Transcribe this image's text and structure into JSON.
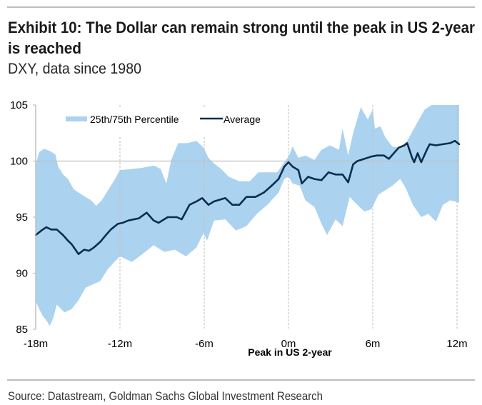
{
  "header": {
    "title_lines": [
      "Exhibit 10: The Dollar can remain strong until the peak in US 2-year",
      "is reached"
    ],
    "subtitle": "DXY, data since 1980"
  },
  "footer": {
    "source": "Source: Datastream, Goldman Sachs Global Investment Research"
  },
  "colors": {
    "band": "#abd3f0",
    "average_line": "#0b2d4f",
    "gridline": "#bfbfbf",
    "rule": "#a6a6a6"
  },
  "chart_data": {
    "type": "area",
    "title": "Exhibit 10: The Dollar can remain strong until the peak in US 2-year is reached",
    "subtitle": "DXY, data since 1980",
    "xlabel": "Peak in US 2-year",
    "ylabel": "",
    "xlim": [
      -18,
      12.15
    ],
    "ylim": [
      85,
      105
    ],
    "x_ticks": [
      -18,
      -12,
      -6,
      0,
      6,
      12
    ],
    "x_tick_labels": [
      "-18m",
      "-12m",
      "-6m",
      "0m",
      "6m",
      "12m"
    ],
    "y_ticks": [
      85,
      90,
      95,
      100,
      105
    ],
    "y_tick_labels": [
      "85",
      "90",
      "95",
      "100",
      "105"
    ],
    "grid": false,
    "reference_lines": {
      "horizontal": [
        100
      ],
      "vertical_dashed": [
        -12,
        -6,
        0,
        6,
        12
      ]
    },
    "legend": {
      "position": "top-left",
      "entries": [
        {
          "name": "25th/75th Percentile",
          "kind": "band"
        },
        {
          "name": "Average",
          "kind": "line"
        }
      ]
    },
    "series": [
      {
        "name": "25th/75th Percentile",
        "type": "band",
        "upper": [
          [
            -18.0,
            99.7
          ],
          [
            -17.75,
            100.8
          ],
          [
            -17.4,
            101.1
          ],
          [
            -17.0,
            100.9
          ],
          [
            -16.6,
            100.6
          ],
          [
            -16.4,
            99.5
          ],
          [
            -16.05,
            98.8
          ],
          [
            -15.7,
            98.4
          ],
          [
            -15.3,
            97.5
          ],
          [
            -14.95,
            97.2
          ],
          [
            -14.45,
            96.8
          ],
          [
            -14.05,
            96.5
          ],
          [
            -13.7,
            96.0
          ],
          [
            -13.3,
            96.5
          ],
          [
            -12.9,
            97.3
          ],
          [
            -12.4,
            98.3
          ],
          [
            -12.0,
            99.2
          ],
          [
            -11.15,
            99.3
          ],
          [
            -10.4,
            99.4
          ],
          [
            -9.6,
            99.6
          ],
          [
            -9.1,
            99.3
          ],
          [
            -8.7,
            98.0
          ],
          [
            -8.35,
            100.1
          ],
          [
            -7.85,
            101.6
          ],
          [
            -7.2,
            101.6
          ],
          [
            -6.55,
            101.8
          ],
          [
            -6.05,
            101.2
          ],
          [
            -5.7,
            100.3
          ],
          [
            -5.4,
            99.9
          ],
          [
            -4.8,
            99.3
          ],
          [
            -4.25,
            98.6
          ],
          [
            -3.5,
            98.2
          ],
          [
            -2.75,
            98.2
          ],
          [
            -2.15,
            99.0
          ],
          [
            -1.5,
            99.0
          ],
          [
            -0.8,
            99.0
          ],
          [
            -0.3,
            99.9
          ],
          [
            0.0,
            100.4
          ],
          [
            0.3,
            101.3
          ],
          [
            0.7,
            100.3
          ],
          [
            1.2,
            100.5
          ],
          [
            1.85,
            100.1
          ],
          [
            2.35,
            101.0
          ],
          [
            2.95,
            101.4
          ],
          [
            3.6,
            101.0
          ],
          [
            3.85,
            102.9
          ],
          [
            4.25,
            100.5
          ],
          [
            4.6,
            102.5
          ],
          [
            5.15,
            104.8
          ],
          [
            5.65,
            103.7
          ],
          [
            6.0,
            104.6
          ],
          [
            6.15,
            102.9
          ],
          [
            6.55,
            103.1
          ],
          [
            6.9,
            102.1
          ],
          [
            7.4,
            101.3
          ],
          [
            7.95,
            101.2
          ],
          [
            8.45,
            101.8
          ],
          [
            8.85,
            102.7
          ],
          [
            9.2,
            103.5
          ],
          [
            9.7,
            104.6
          ],
          [
            10.2,
            105.0
          ],
          [
            12.15,
            105.0
          ]
        ],
        "lower": [
          [
            -18.0,
            87.5
          ],
          [
            -17.75,
            86.8
          ],
          [
            -17.5,
            86.2
          ],
          [
            -17.25,
            85.8
          ],
          [
            -17.0,
            85.3
          ],
          [
            -16.75,
            86.0
          ],
          [
            -16.5,
            87.2
          ],
          [
            -15.95,
            86.5
          ],
          [
            -15.45,
            86.8
          ],
          [
            -14.95,
            87.6
          ],
          [
            -14.45,
            88.7
          ],
          [
            -13.95,
            89.0
          ],
          [
            -13.4,
            89.3
          ],
          [
            -12.9,
            90.3
          ],
          [
            -12.4,
            91.0
          ],
          [
            -12.0,
            91.5
          ],
          [
            -11.15,
            91.0
          ],
          [
            -10.4,
            91.7
          ],
          [
            -9.6,
            92.5
          ],
          [
            -8.85,
            91.9
          ],
          [
            -8.1,
            92.1
          ],
          [
            -7.3,
            91.5
          ],
          [
            -6.55,
            92.3
          ],
          [
            -6.05,
            93.6
          ],
          [
            -5.8,
            92.9
          ],
          [
            -5.3,
            94.7
          ],
          [
            -4.5,
            94.8
          ],
          [
            -3.75,
            93.8
          ],
          [
            -3.0,
            94.2
          ],
          [
            -2.25,
            95.3
          ],
          [
            -1.5,
            96.1
          ],
          [
            -0.7,
            97.2
          ],
          [
            -0.3,
            98.4
          ],
          [
            0.0,
            98.6
          ],
          [
            0.3,
            98.0
          ],
          [
            0.8,
            97.8
          ],
          [
            1.2,
            96.5
          ],
          [
            1.85,
            95.9
          ],
          [
            2.35,
            94.4
          ],
          [
            2.75,
            93.4
          ],
          [
            3.35,
            94.8
          ],
          [
            3.85,
            94.2
          ],
          [
            4.35,
            96.8
          ],
          [
            4.9,
            96.1
          ],
          [
            5.4,
            95.5
          ],
          [
            5.9,
            95.7
          ],
          [
            6.4,
            97.0
          ],
          [
            6.9,
            97.4
          ],
          [
            7.4,
            97.8
          ],
          [
            7.95,
            98.4
          ],
          [
            8.35,
            97.6
          ],
          [
            8.85,
            96.1
          ],
          [
            9.45,
            95.0
          ],
          [
            9.95,
            95.3
          ],
          [
            10.5,
            94.6
          ],
          [
            11.0,
            96.1
          ],
          [
            11.5,
            96.5
          ],
          [
            12.15,
            96.3
          ]
        ]
      },
      {
        "name": "Average",
        "type": "line",
        "points": [
          [
            -18.0,
            93.4
          ],
          [
            -17.6,
            93.8
          ],
          [
            -17.25,
            94.1
          ],
          [
            -16.9,
            93.9
          ],
          [
            -16.5,
            93.9
          ],
          [
            -16.05,
            93.4
          ],
          [
            -15.7,
            92.9
          ],
          [
            -15.45,
            92.6
          ],
          [
            -14.95,
            91.7
          ],
          [
            -14.55,
            92.1
          ],
          [
            -14.2,
            92.0
          ],
          [
            -13.85,
            92.3
          ],
          [
            -13.4,
            92.8
          ],
          [
            -13.0,
            93.4
          ],
          [
            -12.65,
            93.9
          ],
          [
            -12.15,
            94.4
          ],
          [
            -11.8,
            94.5
          ],
          [
            -11.4,
            94.7
          ],
          [
            -10.65,
            94.9
          ],
          [
            -10.1,
            95.4
          ],
          [
            -9.6,
            94.7
          ],
          [
            -9.25,
            94.5
          ],
          [
            -8.6,
            95.0
          ],
          [
            -7.95,
            95.0
          ],
          [
            -7.6,
            94.8
          ],
          [
            -7.05,
            96.1
          ],
          [
            -6.55,
            96.4
          ],
          [
            -6.15,
            96.7
          ],
          [
            -5.7,
            96.1
          ],
          [
            -5.3,
            96.4
          ],
          [
            -4.5,
            96.7
          ],
          [
            -4.0,
            96.1
          ],
          [
            -3.5,
            96.1
          ],
          [
            -3.0,
            96.8
          ],
          [
            -2.35,
            96.8
          ],
          [
            -1.75,
            97.2
          ],
          [
            -1.2,
            97.8
          ],
          [
            -0.7,
            98.4
          ],
          [
            -0.3,
            99.5
          ],
          [
            0.0,
            99.9
          ],
          [
            0.3,
            99.5
          ],
          [
            0.7,
            99.2
          ],
          [
            0.95,
            98.0
          ],
          [
            1.4,
            98.6
          ],
          [
            1.85,
            98.4
          ],
          [
            2.35,
            98.3
          ],
          [
            2.85,
            99.0
          ],
          [
            3.35,
            98.8
          ],
          [
            3.85,
            98.8
          ],
          [
            4.25,
            98.1
          ],
          [
            4.6,
            99.7
          ],
          [
            4.9,
            100.0
          ],
          [
            5.4,
            100.2
          ],
          [
            5.9,
            100.4
          ],
          [
            6.3,
            100.5
          ],
          [
            6.8,
            100.5
          ],
          [
            7.15,
            100.2
          ],
          [
            7.5,
            100.7
          ],
          [
            7.85,
            101.2
          ],
          [
            8.25,
            101.4
          ],
          [
            8.45,
            101.6
          ],
          [
            8.8,
            100.3
          ],
          [
            8.95,
            99.9
          ],
          [
            9.2,
            100.7
          ],
          [
            9.45,
            99.9
          ],
          [
            9.85,
            101.0
          ],
          [
            10.05,
            101.5
          ],
          [
            10.5,
            101.4
          ],
          [
            11.0,
            101.5
          ],
          [
            11.5,
            101.6
          ],
          [
            11.85,
            101.8
          ],
          [
            12.15,
            101.5
          ]
        ]
      }
    ]
  }
}
